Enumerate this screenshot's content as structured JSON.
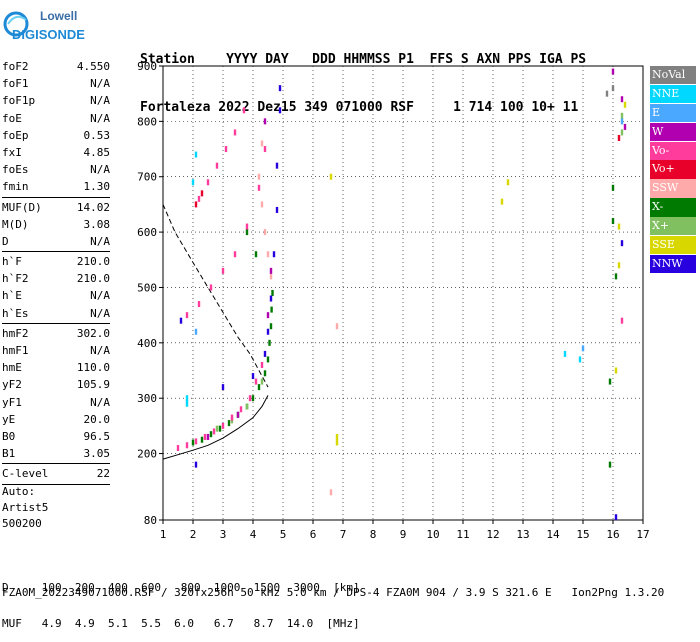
{
  "logo": {
    "line1": "Lowell",
    "line2": "DIGISONDE"
  },
  "header": {
    "row1": "Station    YYYY DAY   DDD HHMMSS P1  FFS S AXN PPS IGA PS",
    "row2": "Fortaleza 2022 Dez15 349 071000 RSF     1 714 100 10+ 11"
  },
  "params": [
    {
      "label": "foF2",
      "value": "4.550"
    },
    {
      "label": "foF1",
      "value": "N/A"
    },
    {
      "label": "foF1p",
      "value": "N/A"
    },
    {
      "label": "foE",
      "value": "N/A"
    },
    {
      "label": "foEp",
      "value": "0.53"
    },
    {
      "label": "fxI",
      "value": "4.85"
    },
    {
      "label": "foEs",
      "value": "N/A"
    },
    {
      "label": "fmin",
      "value": "1.30"
    },
    {
      "sep": true
    },
    {
      "label": "MUF(D)",
      "value": "14.02"
    },
    {
      "label": "M(D)",
      "value": "3.08"
    },
    {
      "label": "D",
      "value": "N/A"
    },
    {
      "sep": true
    },
    {
      "label": "h`F",
      "value": "210.0"
    },
    {
      "label": "h`F2",
      "value": "210.0"
    },
    {
      "label": "h`E",
      "value": "N/A"
    },
    {
      "label": "h`Es",
      "value": "N/A"
    },
    {
      "sep": true
    },
    {
      "label": "hmF2",
      "value": "302.0"
    },
    {
      "label": "hmF1",
      "value": "N/A"
    },
    {
      "label": "hmE",
      "value": "110.0"
    },
    {
      "label": "yF2",
      "value": "105.9"
    },
    {
      "label": "yF1",
      "value": "N/A"
    },
    {
      "label": "yE",
      "value": "20.0"
    },
    {
      "label": "B0",
      "value": "96.5"
    },
    {
      "label": "B1",
      "value": "3.05"
    },
    {
      "sep": true
    },
    {
      "label": "C-level",
      "value": "22"
    },
    {
      "sep": true
    }
  ],
  "auto": {
    "line1": "Auto:",
    "line2": "Artist5",
    "line3": "500200"
  },
  "legend": [
    {
      "label": "NoVal",
      "color": "#808080"
    },
    {
      "label": "NNE",
      "color": "#00d8ff"
    },
    {
      "label": "E",
      "color": "#4aa8ff"
    },
    {
      "label": "W",
      "color": "#b000b0"
    },
    {
      "label": "Vo-",
      "color": "#ff3c9c"
    },
    {
      "label": "Vo+",
      "color": "#e8002a"
    },
    {
      "label": "SSW",
      "color": "#ffaaaa"
    },
    {
      "label": "X-",
      "color": "#007a00"
    },
    {
      "label": "X+",
      "color": "#80c060"
    },
    {
      "label": "SSE",
      "color": "#d8d800"
    },
    {
      "label": "NNW",
      "color": "#2800e0"
    }
  ],
  "chart_data": {
    "type": "scatter",
    "xlabel": "",
    "ylabel": "",
    "xlim": [
      1,
      17
    ],
    "ylim": [
      80,
      900
    ],
    "x_ticks": [
      1,
      2,
      3,
      4,
      5,
      6,
      7,
      8,
      9,
      10,
      11,
      12,
      13,
      14,
      15,
      16,
      17
    ],
    "y_ticks": [
      80,
      200,
      300,
      400,
      500,
      600,
      700,
      800,
      900
    ],
    "grid": "dotted",
    "legend_position": "right",
    "series": [
      {
        "name": "X-",
        "color": "#007a00",
        "points": [
          [
            2.0,
            220
          ],
          [
            2.3,
            225
          ],
          [
            2.6,
            235
          ],
          [
            2.9,
            245
          ],
          [
            3.2,
            255
          ],
          [
            3.5,
            270
          ],
          [
            3.8,
            285
          ],
          [
            4.0,
            300
          ],
          [
            4.2,
            320
          ],
          [
            4.4,
            345
          ],
          [
            4.5,
            370
          ],
          [
            4.55,
            400
          ],
          [
            4.6,
            430
          ],
          [
            4.62,
            460
          ],
          [
            4.65,
            490
          ],
          [
            4.1,
            560
          ],
          [
            3.8,
            600
          ],
          [
            16.0,
            680
          ],
          [
            16.0,
            620
          ],
          [
            16.1,
            520
          ],
          [
            15.9,
            330
          ],
          [
            15.9,
            180
          ]
        ]
      },
      {
        "name": "X+",
        "color": "#80c060",
        "points": [
          [
            2.8,
            245
          ],
          [
            3.3,
            260
          ],
          [
            3.8,
            285
          ],
          [
            4.3,
            330
          ],
          [
            16.3,
            810
          ],
          [
            16.3,
            780
          ]
        ]
      },
      {
        "name": "Vo-",
        "color": "#ff3c9c",
        "points": [
          [
            1.5,
            210
          ],
          [
            1.8,
            215
          ],
          [
            2.1,
            222
          ],
          [
            2.4,
            230
          ],
          [
            2.7,
            240
          ],
          [
            3.0,
            250
          ],
          [
            3.3,
            265
          ],
          [
            3.6,
            280
          ],
          [
            3.9,
            300
          ],
          [
            4.1,
            330
          ],
          [
            4.3,
            360
          ],
          [
            1.8,
            450
          ],
          [
            2.2,
            470
          ],
          [
            2.6,
            500
          ],
          [
            3.0,
            530
          ],
          [
            3.4,
            560
          ],
          [
            3.8,
            610
          ],
          [
            4.2,
            680
          ],
          [
            4.4,
            750
          ],
          [
            2.2,
            660
          ],
          [
            2.5,
            690
          ],
          [
            2.8,
            720
          ],
          [
            3.1,
            750
          ],
          [
            3.4,
            780
          ],
          [
            3.7,
            820
          ],
          [
            16.3,
            440
          ]
        ]
      },
      {
        "name": "Vo+",
        "color": "#e8002a",
        "points": [
          [
            2.1,
            650
          ],
          [
            2.3,
            670
          ],
          [
            16.2,
            770
          ]
        ]
      },
      {
        "name": "SSW",
        "color": "#ffaaaa",
        "points": [
          [
            4.2,
            700
          ],
          [
            4.3,
            650
          ],
          [
            4.4,
            600
          ],
          [
            4.5,
            560
          ],
          [
            4.6,
            520
          ],
          [
            4.3,
            760
          ],
          [
            6.8,
            430
          ],
          [
            6.6,
            130
          ]
        ]
      },
      {
        "name": "W",
        "color": "#b000b0",
        "points": [
          [
            2.5,
            230
          ],
          [
            3.5,
            270
          ],
          [
            4.5,
            450
          ],
          [
            4.6,
            530
          ],
          [
            4.4,
            800
          ],
          [
            16.4,
            790
          ],
          [
            16.3,
            840
          ],
          [
            16.0,
            890
          ]
        ]
      },
      {
        "name": "NNW",
        "color": "#2800e0",
        "points": [
          [
            1.6,
            440
          ],
          [
            2.1,
            180
          ],
          [
            3.0,
            320
          ],
          [
            4.0,
            340
          ],
          [
            4.4,
            380
          ],
          [
            4.5,
            420
          ],
          [
            4.6,
            480
          ],
          [
            4.7,
            560
          ],
          [
            4.8,
            640
          ],
          [
            4.8,
            720
          ],
          [
            4.9,
            820
          ],
          [
            4.9,
            860
          ],
          [
            16.3,
            580
          ],
          [
            16.1,
            85
          ]
        ]
      },
      {
        "name": "NNE",
        "color": "#00d8ff",
        "points": [
          [
            1.8,
            300
          ],
          [
            1.8,
            290
          ],
          [
            2.1,
            740
          ],
          [
            2.0,
            690
          ],
          [
            14.4,
            380
          ],
          [
            14.9,
            370
          ]
        ]
      },
      {
        "name": "E",
        "color": "#4aa8ff",
        "points": [
          [
            2.1,
            420
          ],
          [
            15.0,
            390
          ],
          [
            16.3,
            800
          ]
        ]
      },
      {
        "name": "SSE",
        "color": "#d8d800",
        "points": [
          [
            6.8,
            220
          ],
          [
            6.8,
            230
          ],
          [
            6.6,
            700
          ],
          [
            12.5,
            690
          ],
          [
            12.3,
            655
          ],
          [
            16.2,
            610
          ],
          [
            16.2,
            540
          ],
          [
            16.1,
            350
          ],
          [
            16.4,
            830
          ]
        ]
      },
      {
        "name": "NoVal",
        "color": "#808080",
        "points": [
          [
            15.8,
            850
          ],
          [
            16.0,
            860
          ]
        ]
      }
    ],
    "curves": [
      {
        "style": "dashed",
        "points": [
          [
            1.0,
            650
          ],
          [
            1.4,
            600
          ],
          [
            2.0,
            545
          ],
          [
            2.5,
            500
          ],
          [
            3.0,
            455
          ],
          [
            3.5,
            410
          ],
          [
            3.9,
            380
          ],
          [
            4.2,
            350
          ],
          [
            4.5,
            320
          ]
        ]
      },
      {
        "style": "solid",
        "points": [
          [
            1.0,
            190
          ],
          [
            1.5,
            198
          ],
          [
            2.0,
            206
          ],
          [
            2.5,
            215
          ],
          [
            3.0,
            228
          ],
          [
            3.5,
            245
          ],
          [
            4.0,
            265
          ],
          [
            4.3,
            285
          ],
          [
            4.5,
            305
          ]
        ]
      }
    ],
    "footer": {
      "d_label": "D",
      "d_values": [
        "100",
        "200",
        "400",
        "600",
        "800",
        "1000",
        "1500",
        "3000",
        "[km]"
      ],
      "muf_label": "MUF",
      "muf_values": [
        "4.9",
        "4.9",
        "5.1",
        "5.5",
        "6.0",
        "6.7",
        "8.7",
        "14.0",
        "[MHz]"
      ]
    }
  },
  "footer": {
    "row1": "D     100  200  400  600   800  1000  1500  3000  [km]",
    "row2": "MUF   4.9  4.9  5.1  5.5  6.0   6.7   8.7  14.0  [MHz]",
    "row3": "FZA0M_2022349071000.RSF / 320fx256h 50 kHz 5.0 km / DPS-4 FZA0M 904 / 3.9 S 321.6 E   Ion2Png 1.3.20"
  }
}
